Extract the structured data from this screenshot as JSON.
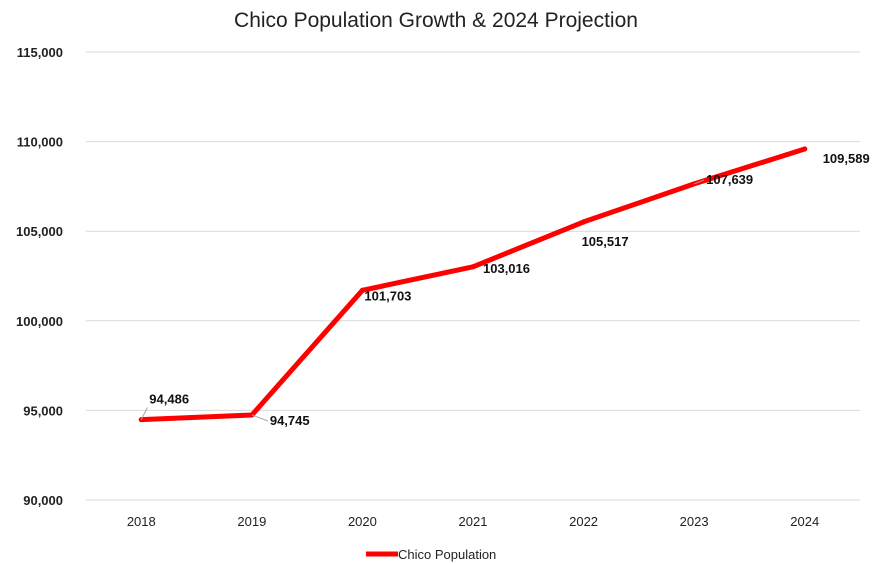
{
  "chart_data": {
    "type": "line",
    "title": "Chico Population Growth & 2024 Projection",
    "xlabel": "",
    "ylabel": "",
    "categories": [
      "2018",
      "2019",
      "2020",
      "2021",
      "2022",
      "2023",
      "2024"
    ],
    "series": [
      {
        "name": "Chico Population",
        "values": [
          94486,
          94745,
          101703,
          103016,
          105517,
          107639,
          109589
        ],
        "data_labels": [
          "94,486",
          "94,745",
          "101,703",
          "103,016",
          "105,517",
          "107,639",
          "109,589"
        ],
        "color": "#ff0000"
      }
    ],
    "ylim": [
      90000,
      115000
    ],
    "yticks": [
      90000,
      95000,
      100000,
      105000,
      110000,
      115000
    ],
    "ytick_labels": [
      "90,000",
      "95,000",
      "100,000",
      "105,000",
      "110,000",
      "115,000"
    ],
    "grid": "horizontal",
    "legend_position": "bottom"
  }
}
